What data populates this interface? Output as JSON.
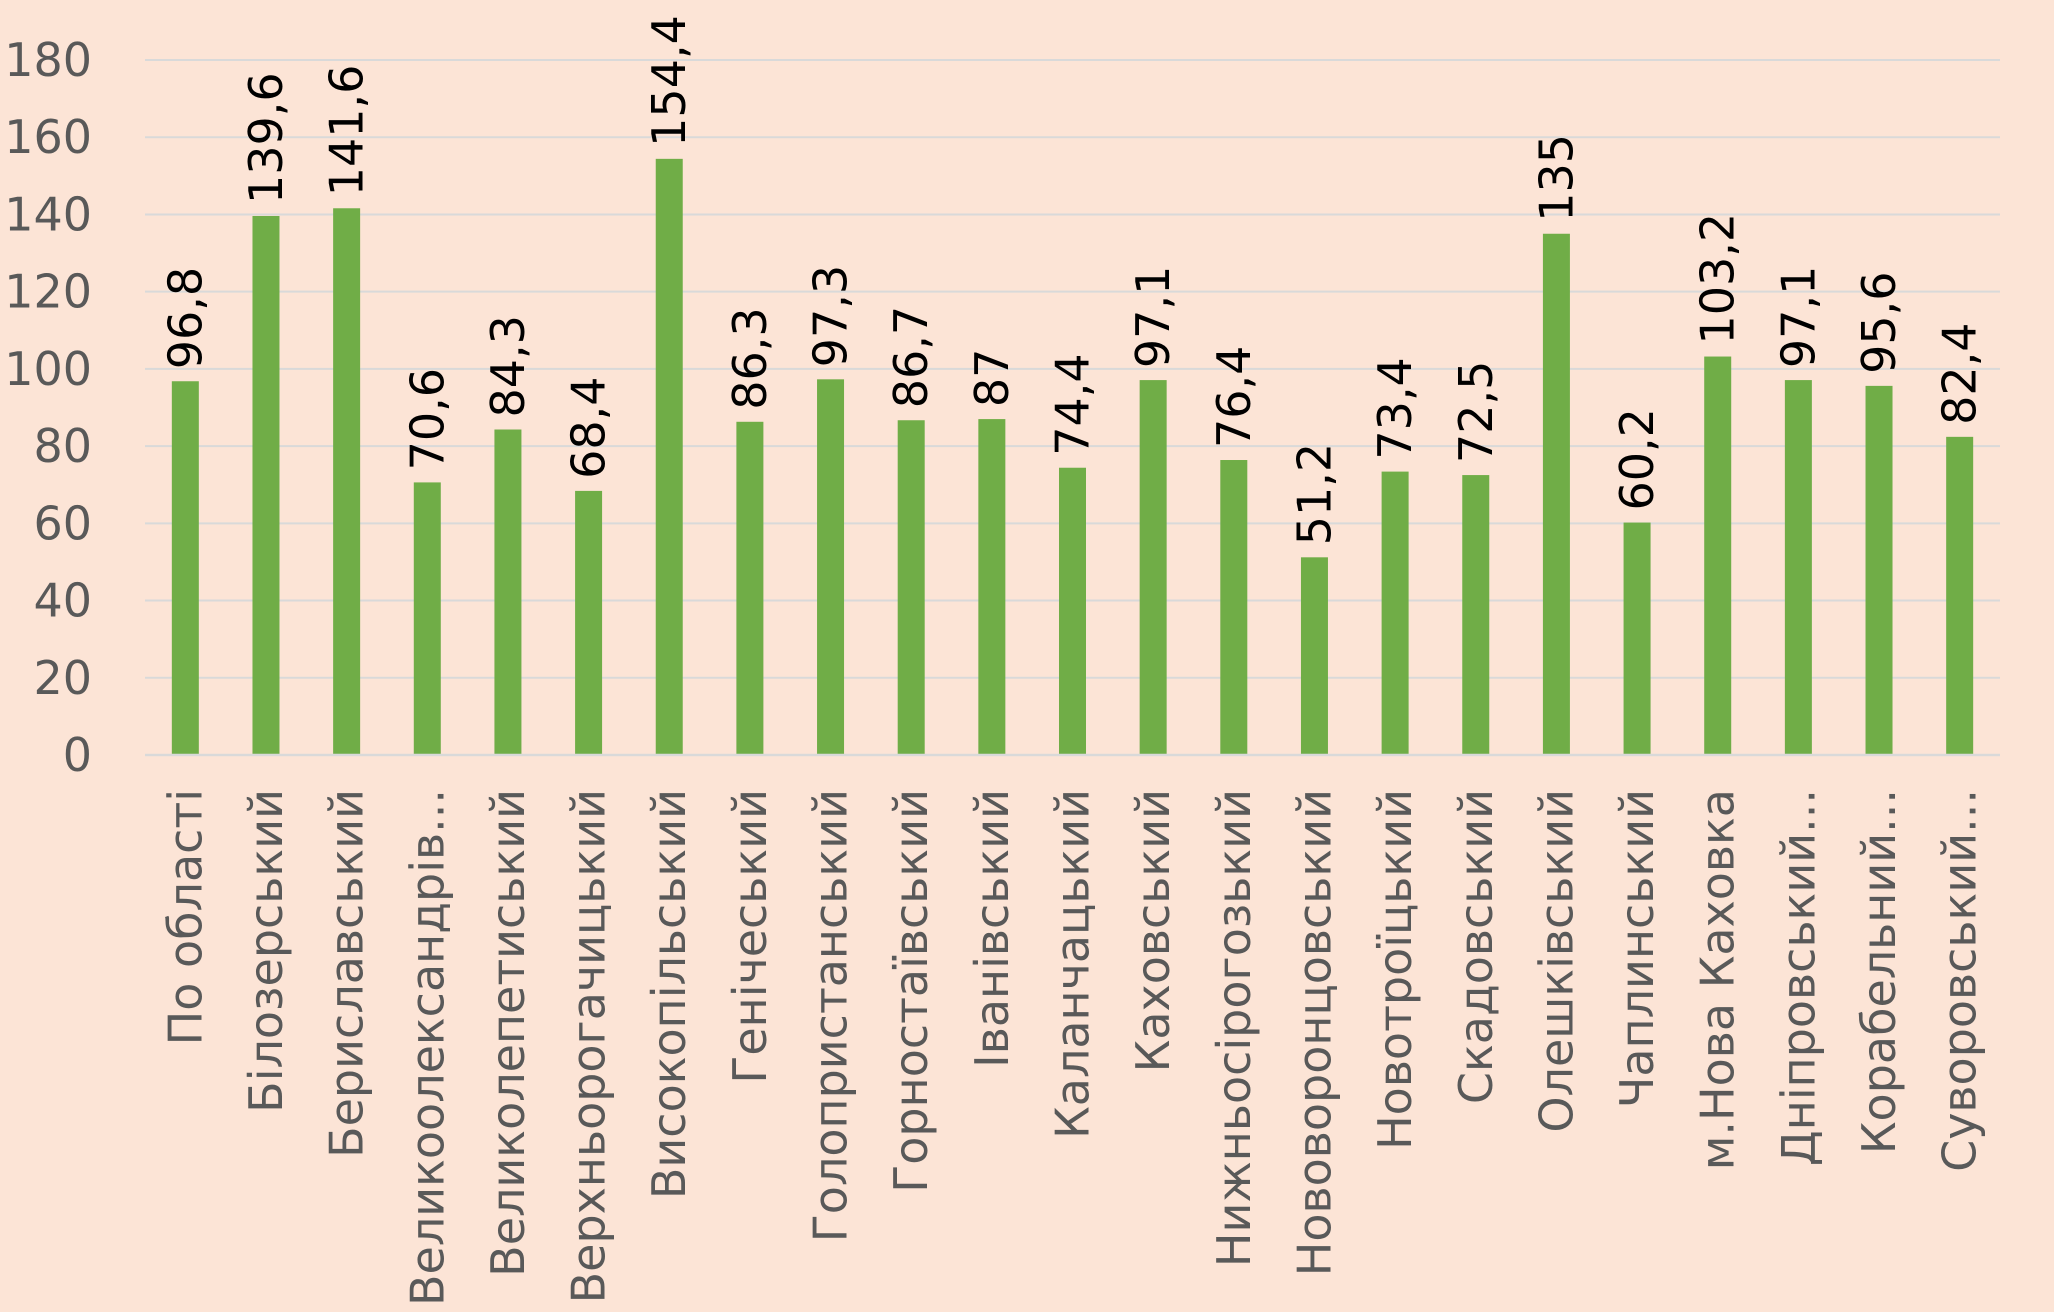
{
  "chart_data": {
    "type": "bar",
    "title": "",
    "xlabel": "",
    "ylabel": "",
    "ylim": [
      0,
      180
    ],
    "yticks": [
      0,
      20,
      40,
      60,
      80,
      100,
      120,
      140,
      160,
      180
    ],
    "grid": true,
    "legend": "none",
    "bar_color": "#70ad47",
    "categories": [
      "По області",
      "Білозерський",
      "Бериславський",
      "Великоолександрів...",
      "Великолепетиський",
      "Верхньорогачицький",
      "Високопільський",
      "Генічеський",
      "Голопристанський",
      "Горностаївський",
      "Іванівський",
      "Каланчацький",
      "Каховський",
      "Нижньосірогозький",
      "Нововоронцовський",
      "Новотроїцький",
      "Скадовський",
      "Олешківський",
      "Чаплинський",
      "м.Нова Каховка",
      "Дніпровський...",
      "Корабельний...",
      "Суворовський..."
    ],
    "values": [
      96.8,
      139.6,
      141.6,
      70.6,
      84.3,
      68.4,
      154.4,
      86.3,
      97.3,
      86.7,
      87,
      74.4,
      97.1,
      76.4,
      51.2,
      73.4,
      72.5,
      135,
      60.2,
      103.2,
      97.1,
      95.6,
      82.4
    ],
    "data_labels": [
      "96,8",
      "139,6",
      "141,6",
      "70,6",
      "84,3",
      "68,4",
      "154,4",
      "86,3",
      "97,3",
      "86,7",
      "87",
      "74,4",
      "97,1",
      "76,4",
      "51,2",
      "73,4",
      "72,5",
      "135",
      "60,2",
      "103,2",
      "97,1",
      "95,6",
      "82,4"
    ]
  }
}
